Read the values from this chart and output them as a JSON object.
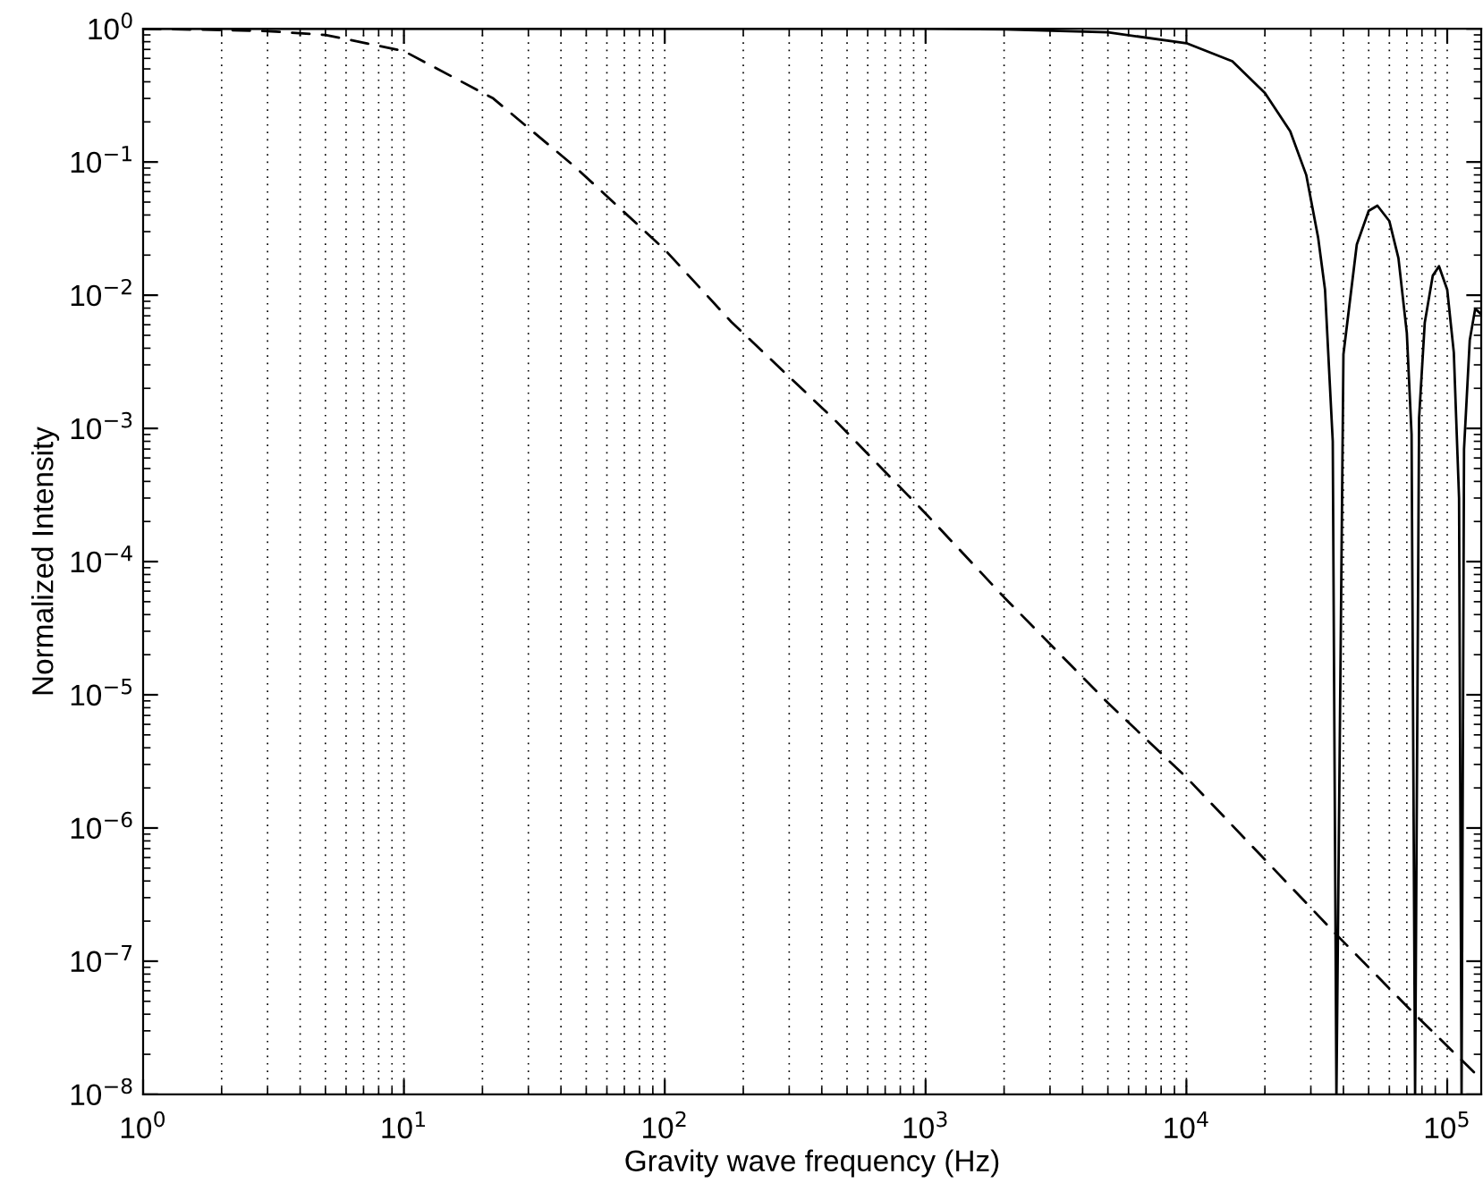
{
  "chart_data": {
    "type": "line",
    "xlabel": "Gravity wave frequency (Hz)",
    "ylabel": "Normalized Intensity",
    "log": "xy",
    "grid": "x",
    "marker": "none",
    "xlim": [
      1,
      135000
    ],
    "ylim": [
      1e-08,
      1
    ],
    "xticks": [
      {
        "value": 1,
        "label": "10$^{0}$"
      },
      {
        "value": 10,
        "label": "10$^{1}$"
      },
      {
        "value": 100,
        "label": "10$^{2}$"
      },
      {
        "value": 1000,
        "label": "10$^{3}$"
      },
      {
        "value": 10000,
        "label": "10$^{4}$"
      },
      {
        "value": 100000,
        "label": "10$^{5}$"
      }
    ],
    "yticks": [
      {
        "value": 1e-08,
        "label": "10$^{−8}$"
      },
      {
        "value": 1e-07,
        "label": "10$^{−7}$"
      },
      {
        "value": 1e-06,
        "label": "10$^{−6}$"
      },
      {
        "value": 1e-05,
        "label": "10$^{−5}$"
      },
      {
        "value": 0.0001,
        "label": "10$^{−4}$"
      },
      {
        "value": 0.001,
        "label": "10$^{−3}$"
      },
      {
        "value": 0.01,
        "label": "10$^{−2}$"
      },
      {
        "value": 0.1,
        "label": "10$^{−1}$"
      },
      {
        "value": 1,
        "label": "10$^{0}$"
      }
    ],
    "series": [
      {
        "color": "#000000",
        "line_style": "solid",
        "x": [
          1,
          1000,
          2000,
          5000,
          10000,
          15000,
          20000,
          25000,
          28800,
          32000,
          34000,
          36400,
          37600,
          40000,
          45000,
          50000,
          54000,
          60000,
          65000,
          70000,
          73000,
          75300,
          78000,
          82000,
          88000,
          93000,
          100000,
          106000,
          111000,
          113500,
          116000,
          122000,
          128000,
          135000
        ],
        "values": [
          1,
          1,
          0.99,
          0.94,
          0.78,
          0.57,
          0.33,
          0.17,
          0.08,
          0.027,
          0.011,
          0.0008,
          1e-08,
          0.0036,
          0.024,
          0.043,
          0.047,
          0.036,
          0.019,
          0.0052,
          0.0009,
          1e-08,
          0.0012,
          0.0062,
          0.014,
          0.0165,
          0.011,
          0.0037,
          0.0003,
          1e-08,
          0.0007,
          0.0046,
          0.0079,
          0.0072
        ]
      },
      {
        "color": "#000000",
        "line_style": "dashed",
        "x": [
          1,
          2,
          3,
          5,
          10,
          22,
          45,
          100,
          180,
          450,
          1000,
          2000,
          5000,
          10000,
          38000,
          76000,
          135000
        ],
        "values": [
          1,
          0.98,
          0.96,
          0.9,
          0.68,
          0.3,
          0.093,
          0.022,
          0.0063,
          0.00115,
          0.00023,
          5.4e-05,
          8.7e-06,
          2.4e-06,
          1.55e-07,
          3.9e-08,
          1.3e-08
        ]
      }
    ]
  }
}
